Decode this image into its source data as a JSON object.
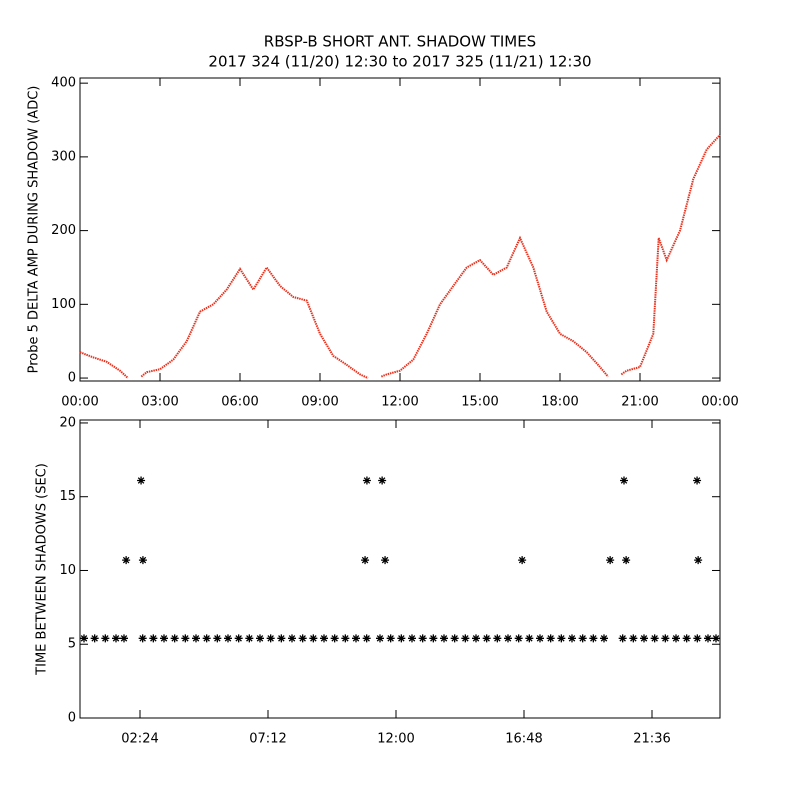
{
  "chart_data": [
    {
      "type": "line",
      "title": "RBSP-B SHORT ANT. SHADOW TIMES",
      "subtitle": "2017 324 (11/20) 12:30 to 2017 325 (11/21) 12:30",
      "y_label": "Probe 5 DELTA AMP DURING SHADOW (ADC)",
      "color": "#e8321e",
      "x": [
        0,
        0.5,
        1,
        1.5,
        1.8,
        2.05,
        2.3,
        2.5,
        3,
        3.5,
        4,
        4.5,
        5,
        5.5,
        6,
        6.5,
        7,
        7.5,
        8,
        8.5,
        9,
        9.5,
        10,
        10.5,
        10.8,
        11.05,
        11.3,
        11.5,
        12,
        12.5,
        13,
        13.5,
        14,
        14.5,
        15,
        15.5,
        16,
        16.5,
        17,
        17.5,
        18,
        18.5,
        19,
        19.5,
        19.8,
        20.05,
        20.3,
        20.5,
        21,
        21.5,
        21.7,
        22,
        22.5,
        23,
        23.5,
        24
      ],
      "values": [
        35,
        28,
        22,
        10,
        0,
        null,
        2,
        8,
        12,
        25,
        50,
        90,
        100,
        120,
        148,
        120,
        150,
        125,
        110,
        105,
        60,
        30,
        18,
        5,
        0,
        null,
        2,
        5,
        10,
        25,
        60,
        100,
        125,
        150,
        160,
        140,
        150,
        190,
        150,
        90,
        60,
        50,
        35,
        15,
        2,
        null,
        5,
        10,
        15,
        60,
        190,
        160,
        200,
        270,
        310,
        330
      ],
      "xlim": [
        0,
        24
      ],
      "xticks": [
        {
          "value": 0,
          "label": "00:00"
        },
        {
          "value": 3,
          "label": "03:00"
        },
        {
          "value": 6,
          "label": "06:00"
        },
        {
          "value": 9,
          "label": "09:00"
        },
        {
          "value": 12,
          "label": "12:00"
        },
        {
          "value": 15,
          "label": "15:00"
        },
        {
          "value": 18,
          "label": "18:00"
        },
        {
          "value": 21,
          "label": "21:00"
        },
        {
          "value": 24,
          "label": "00:00"
        }
      ],
      "ylim": [
        -4,
        407
      ],
      "yticks": [
        0,
        100,
        200,
        300,
        400
      ]
    },
    {
      "type": "scatter",
      "y_label": "TIME BETWEEN SHADOWS (SEC)",
      "color": "#000000",
      "x": [
        0.3,
        0.7,
        1.1,
        1.5,
        1.8,
        2.5,
        2.9,
        3.3,
        3.7,
        4.1,
        4.5,
        4.9,
        5.3,
        5.7,
        6.1,
        6.5,
        6.9,
        7.3,
        7.7,
        8.1,
        8.5,
        8.9,
        9.3,
        9.7,
        10.1,
        10.5,
        10.9,
        11.4,
        11.8,
        12.2,
        12.6,
        13.0,
        13.4,
        13.8,
        14.2,
        14.6,
        15.0,
        15.4,
        15.8,
        16.2,
        16.6,
        17.0,
        17.4,
        17.8,
        18.2,
        18.6,
        19.0,
        19.4,
        19.8,
        20.5,
        20.9,
        21.3,
        21.7,
        22.1,
        22.5,
        22.9,
        23.3,
        23.7,
        24.0,
        1.88,
        2.44,
        2.51,
        10.84,
        10.91,
        11.48,
        11.59,
        16.73,
        20.03,
        20.55,
        20.63,
        23.29,
        23.33
      ],
      "values": [
        5.4,
        5.4,
        5.4,
        5.4,
        5.4,
        5.4,
        5.4,
        5.4,
        5.4,
        5.4,
        5.4,
        5.4,
        5.4,
        5.4,
        5.4,
        5.4,
        5.4,
        5.4,
        5.4,
        5.4,
        5.4,
        5.4,
        5.4,
        5.4,
        5.4,
        5.4,
        5.4,
        5.4,
        5.4,
        5.4,
        5.4,
        5.4,
        5.4,
        5.4,
        5.4,
        5.4,
        5.4,
        5.4,
        5.4,
        5.4,
        5.4,
        5.4,
        5.4,
        5.4,
        5.4,
        5.4,
        5.4,
        5.4,
        5.4,
        5.4,
        5.4,
        5.4,
        5.4,
        5.4,
        5.4,
        5.4,
        5.4,
        5.4,
        5.4,
        10.7,
        16.1,
        10.7,
        10.7,
        16.1,
        16.1,
        10.7,
        10.7,
        10.7,
        16.1,
        10.7,
        16.1,
        10.7
      ],
      "xlim": [
        0.15,
        24.15
      ],
      "xticks": [
        {
          "value": 2.4,
          "label": "02:24"
        },
        {
          "value": 7.2,
          "label": "07:12"
        },
        {
          "value": 12,
          "label": "12:00"
        },
        {
          "value": 16.8,
          "label": "16:48"
        },
        {
          "value": 21.6,
          "label": "21:36"
        }
      ],
      "ylim": [
        0,
        20.2
      ],
      "yticks": [
        0,
        5,
        10,
        15,
        20
      ]
    }
  ]
}
